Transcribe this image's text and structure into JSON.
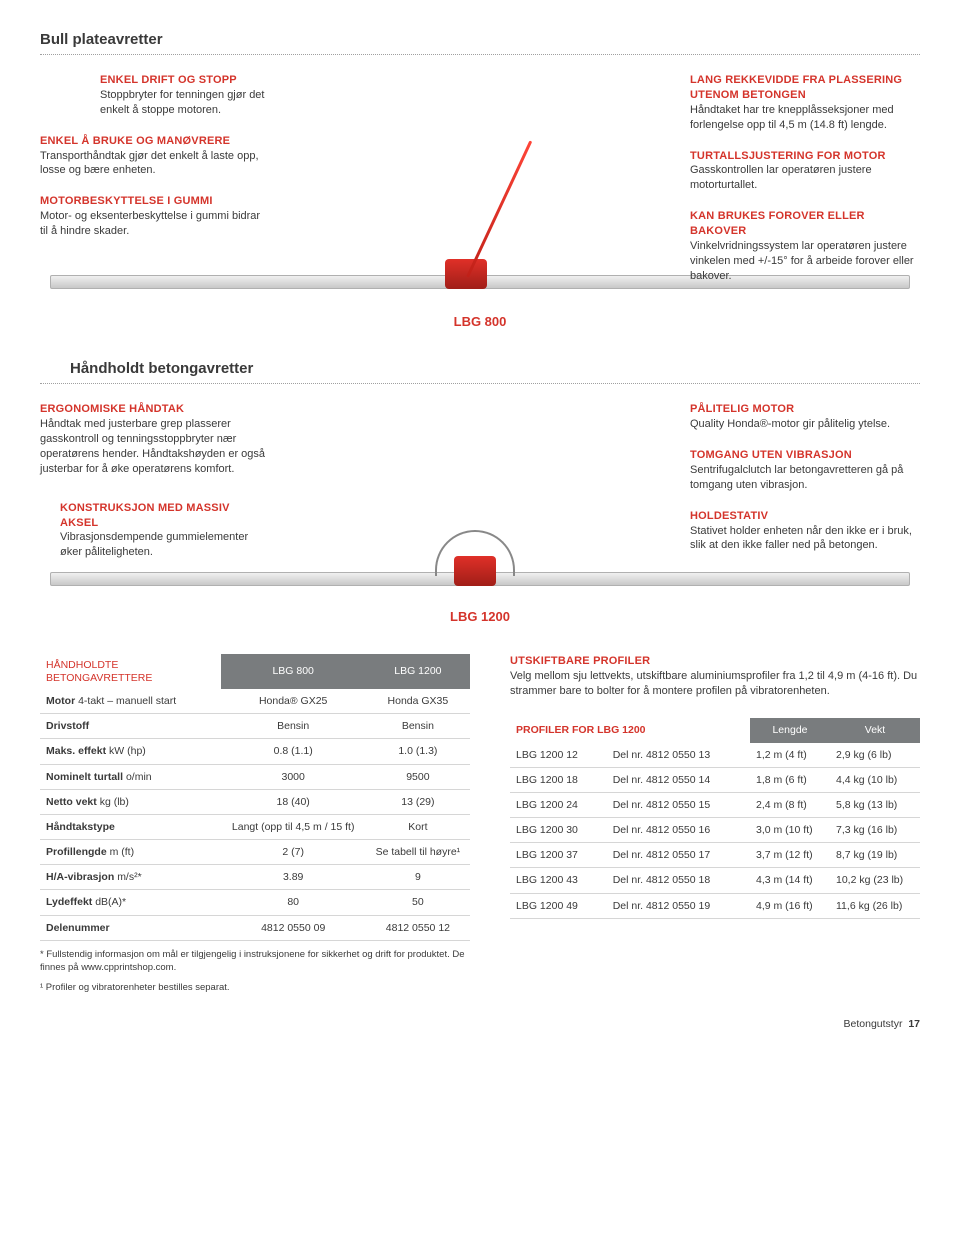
{
  "colors": {
    "accent": "#d4342b",
    "header_bg": "#797c7e",
    "text": "#3a3a3a",
    "rule": "#d6d6d6",
    "dotted": "#a0a0a0"
  },
  "typography": {
    "body_size_pt": 11,
    "section_title_pt": 15,
    "product_label_pt": 13,
    "footnote_pt": 9.5
  },
  "section1": {
    "title": "Bull plateavretter",
    "product_label": "LBG 800",
    "callouts_left": [
      {
        "title": "ENKEL DRIFT OG STOPP",
        "body": "Stoppbryter for tenningen gjør det enkelt å stoppe motoren."
      },
      {
        "title": "ENKEL Å BRUKE OG MANØVRERE",
        "body": "Transporthåndtak gjør det enkelt å laste opp, losse og bære enheten."
      },
      {
        "title": "MOTORBESKYTTELSE I GUMMI",
        "body": "Motor- og eksenterbeskyttelse i gummi bidrar til å hindre skader."
      }
    ],
    "callouts_right": [
      {
        "title": "LANG REKKEVIDDE FRA PLASSERING UTENOM BETONGEN",
        "body": "Håndtaket har tre knepplåsseksjoner med forlengelse opp til 4,5 m (14.8 ft) lengde."
      },
      {
        "title": "TURTALLSJUSTERING FOR MOTOR",
        "body": "Gasskontrollen lar operatøren justere motorturtallet."
      },
      {
        "title": "KAN BRUKES FOROVER ELLER BAKOVER",
        "body": "Vinkelvridningssystem lar operatøren justere vinkelen med +/-15° for å arbeide forover eller bakover."
      }
    ]
  },
  "section2": {
    "title": "Håndholdt betongavretter",
    "product_label": "LBG 1200",
    "callouts_left": [
      {
        "title": "ERGONOMISKE HÅNDTAK",
        "body": "Håndtak med justerbare grep plasserer gasskontroll og tenningsstoppbryter nær operatørens hender. Håndtakshøyden er også justerbar for å øke operatørens komfort."
      },
      {
        "title": "KONSTRUKSJON MED MASSIV AKSEL",
        "body": "Vibrasjonsdempende gummielementer øker påliteligheten."
      }
    ],
    "callouts_right": [
      {
        "title": "PÅLITELIG MOTOR",
        "body": "Quality Honda®-motor gir pålitelig ytelse."
      },
      {
        "title": "TOMGANG UTEN VIBRASJON",
        "body": "Sentrifugalclutch lar betongavretteren gå på tomgang uten vibrasjon."
      },
      {
        "title": "HOLDESTATIV",
        "body": "Stativet holder enheten når den ikke er i bruk, slik at den ikke faller ned på betongen."
      }
    ]
  },
  "spec_table": {
    "title": "HÅNDHOLDTE BETONGAVRETTERE",
    "columns": [
      "LBG 800",
      "LBG 1200"
    ],
    "rows": [
      {
        "label": "Motor",
        "sublabel": "4-takt – manuell start",
        "c1": "Honda® GX25",
        "c2": "Honda GX35"
      },
      {
        "label": "Drivstoff",
        "sublabel": "",
        "c1": "Bensin",
        "c2": "Bensin"
      },
      {
        "label": "Maks. effekt",
        "sublabel": "kW (hp)",
        "c1": "0.8 (1.1)",
        "c2": "1.0 (1.3)"
      },
      {
        "label": "Nominelt turtall",
        "sublabel": "o/min",
        "c1": "3000",
        "c2": "9500"
      },
      {
        "label": "Netto vekt",
        "sublabel": "kg (lb)",
        "c1": "18 (40)",
        "c2": "13 (29)"
      },
      {
        "label": "Håndtakstype",
        "sublabel": "",
        "c1": "Langt (opp til 4,5 m / 15 ft)",
        "c2": "Kort"
      },
      {
        "label": "Profillengde",
        "sublabel": "m (ft)",
        "c1": "2 (7)",
        "c2": "Se tabell til høyre¹"
      },
      {
        "label": "H/A-vibrasjon",
        "sublabel": "m/s²*",
        "c1": "3.89",
        "c2": "9"
      },
      {
        "label": "Lydeffekt",
        "sublabel": "dB(A)*",
        "c1": "80",
        "c2": "50"
      },
      {
        "label": "Delenummer",
        "sublabel": "",
        "c1": "4812 0550 09",
        "c2": "4812 0550 12"
      }
    ],
    "footnote1": "* Fullstendig informasjon om mål er tilgjengelig i instruksjonene for sikkerhet og drift for produktet. De finnes på www.cpprintshop.com.",
    "footnote2": "¹ Profiler og vibratorenheter bestilles separat."
  },
  "right_block": {
    "callout": {
      "title": "UTSKIFTBARE PROFILER",
      "body": "Velg mellom sju lettvekts, utskiftbare aluminiumsprofiler fra 1,2 til 4,9 m (4-16 ft). Du strammer bare to bolter for å montere profilen på vibratorenheten."
    },
    "table_title": "PROFILER FOR LBG 1200",
    "columns": [
      "Lengde",
      "Vekt"
    ],
    "rows": [
      {
        "model": "LBG 1200 12",
        "part": "Del nr. 4812 0550 13",
        "len": "1,2 m (4 ft)",
        "wt": "2,9 kg (6 lb)"
      },
      {
        "model": "LBG 1200 18",
        "part": "Del nr. 4812 0550 14",
        "len": "1,8 m (6 ft)",
        "wt": "4,4 kg (10 lb)"
      },
      {
        "model": "LBG 1200 24",
        "part": "Del nr. 4812 0550 15",
        "len": "2,4 m (8 ft)",
        "wt": "5,8 kg (13 lb)"
      },
      {
        "model": "LBG 1200 30",
        "part": "Del nr. 4812 0550 16",
        "len": "3,0 m (10 ft)",
        "wt": "7,3 kg (16 lb)"
      },
      {
        "model": "LBG 1200 37",
        "part": "Del nr. 4812 0550 17",
        "len": "3,7 m (12 ft)",
        "wt": "8,7 kg (19 lb)"
      },
      {
        "model": "LBG 1200 43",
        "part": "Del nr. 4812 0550 18",
        "len": "4,3 m (14 ft)",
        "wt": "10,2 kg (23 lb)"
      },
      {
        "model": "LBG 1200 49",
        "part": "Del nr. 4812 0550 19",
        "len": "4,9 m (16 ft)",
        "wt": "11,6 kg (26 lb)"
      }
    ]
  },
  "footer": {
    "label": "Betongutstyr",
    "page": "17"
  }
}
